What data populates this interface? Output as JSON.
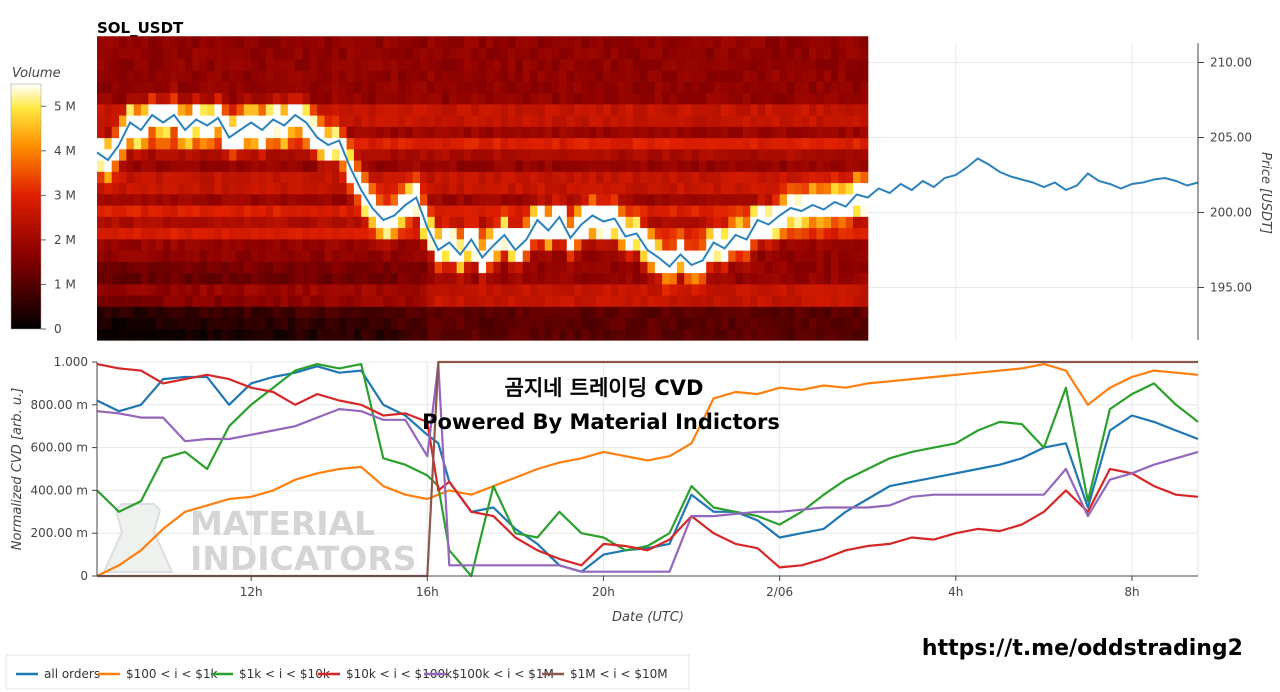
{
  "header": {
    "title": "SOL_USDT"
  },
  "colorbar": {
    "label": "Volume",
    "ticks": [
      "5 M",
      "4 M",
      "3 M",
      "2 M",
      "1 M",
      "0"
    ],
    "tick_values": [
      5,
      4,
      3,
      2,
      1,
      0
    ]
  },
  "overlay": {
    "line1": "곰지네 트레이딩 CVD",
    "line2": "Powered By Material Indictors"
  },
  "watermark": {
    "line1": "MATERIAL",
    "line2": "INDICATORS"
  },
  "footer": {
    "link": "https://t.me/oddstrading2"
  },
  "chart_data": [
    {
      "type": "heatmap",
      "name": "price-volume-heatmap",
      "title": "SOL_USDT",
      "xlabel": "",
      "ylabel": "Price [USDT]",
      "ylim": [
        191.5,
        211.3
      ],
      "y_ticks": [
        "210.00",
        "205.00",
        "200.00",
        "195.00"
      ],
      "y_tick_values": [
        210,
        205,
        200,
        195
      ],
      "color_scale": "black-red-yellow-white",
      "color_label": "Volume",
      "volume_range": [
        0,
        5.5
      ],
      "price_series": {
        "x": [
          8.5,
          8.75,
          9.0,
          9.25,
          9.5,
          9.75,
          10.0,
          10.25,
          10.5,
          10.75,
          11.0,
          11.25,
          11.5,
          11.75,
          12.0,
          12.25,
          12.5,
          12.75,
          13.0,
          13.25,
          13.5,
          13.75,
          14.0,
          14.25,
          14.5,
          14.75,
          15.0,
          15.25,
          15.5,
          15.75,
          16.0,
          16.25,
          16.5,
          16.75,
          17.0,
          17.25,
          17.5,
          17.75,
          18.0,
          18.25,
          18.5,
          18.75,
          19.0,
          19.25,
          19.5,
          19.75,
          20.0,
          20.25,
          20.5,
          20.75,
          21.0,
          21.25,
          21.5,
          21.75,
          22.0,
          22.25,
          22.5,
          22.75,
          23.0,
          23.25,
          23.5,
          23.75,
          24.0,
          24.25,
          24.5,
          24.75,
          25.0,
          25.25,
          25.5,
          25.75,
          26.0,
          26.25,
          26.5,
          26.75,
          27.0,
          27.25,
          27.5,
          27.75,
          28.0,
          28.25,
          28.5,
          28.75,
          29.0,
          29.25,
          29.5,
          29.75,
          30.0,
          30.25,
          30.5,
          30.75,
          31.0,
          31.25,
          31.5,
          31.75,
          32.0,
          32.25,
          32.5,
          32.75,
          33.0,
          33.25,
          33.5
        ],
        "y": [
          204.0,
          203.5,
          204.5,
          206.0,
          205.5,
          206.5,
          206.0,
          206.5,
          205.5,
          206.2,
          205.8,
          206.3,
          205.0,
          205.5,
          206.0,
          205.5,
          206.2,
          205.8,
          206.5,
          206.0,
          205.0,
          204.5,
          204.8,
          203.0,
          201.5,
          200.3,
          199.5,
          199.8,
          200.5,
          201.0,
          199.0,
          197.5,
          198.0,
          197.2,
          198.2,
          197.0,
          197.8,
          198.5,
          197.5,
          198.2,
          199.5,
          198.8,
          199.7,
          198.3,
          199.2,
          199.8,
          199.4,
          199.6,
          198.4,
          198.6,
          197.5,
          197.0,
          196.4,
          197.2,
          196.5,
          196.8,
          198.0,
          197.6,
          198.5,
          198.2,
          199.5,
          199.2,
          199.8,
          200.3,
          200.1,
          200.5,
          200.2,
          200.7,
          200.4,
          201.2,
          201.0,
          201.6,
          201.3,
          201.9,
          201.5,
          202.1,
          201.7,
          202.3,
          202.5,
          203.0,
          203.6,
          203.2,
          202.7,
          202.4,
          202.2,
          202.0,
          201.7,
          202.0,
          201.5,
          201.8,
          202.6,
          202.1,
          201.9,
          201.6,
          201.9,
          202.0,
          202.2,
          202.3,
          202.1,
          201.8,
          202.0
        ],
        "color": "#2b83ba"
      }
    },
    {
      "type": "line",
      "name": "normalized-cvd",
      "xlabel": "Date (UTC)",
      "ylabel": "Normalized CVD [arb. u.]",
      "xlim": [
        8.5,
        33.5
      ],
      "ylim": [
        0,
        1
      ],
      "x_ticks": [
        "12h",
        "16h",
        "20h",
        "2/06",
        "4h",
        "8h"
      ],
      "x_tick_values": [
        12,
        16,
        20,
        24,
        28,
        32
      ],
      "y_ticks": [
        "1.000",
        "800.00 m",
        "600.00 m",
        "400.00 m",
        "200.00 m",
        "0"
      ],
      "y_tick_values": [
        1,
        0.8,
        0.6,
        0.4,
        0.2,
        0
      ],
      "x": [
        8.5,
        9.0,
        9.5,
        10.0,
        10.5,
        11.0,
        11.5,
        12.0,
        12.5,
        13.0,
        13.5,
        14.0,
        14.5,
        15.0,
        15.5,
        16.0,
        16.25,
        16.5,
        17.0,
        17.5,
        18.0,
        18.5,
        19.0,
        19.5,
        20.0,
        20.5,
        21.0,
        21.5,
        22.0,
        22.5,
        23.0,
        23.5,
        24.0,
        24.5,
        25.0,
        25.5,
        26.0,
        26.5,
        27.0,
        27.5,
        28.0,
        28.5,
        29.0,
        29.5,
        30.0,
        30.5,
        31.0,
        31.5,
        32.0,
        32.5,
        33.0,
        33.5
      ],
      "series": [
        {
          "name": "all orders",
          "color": "#1f77b4",
          "values": [
            0.82,
            0.77,
            0.8,
            0.92,
            0.93,
            0.93,
            0.8,
            0.9,
            0.93,
            0.95,
            0.98,
            0.95,
            0.96,
            0.8,
            0.75,
            0.66,
            0.62,
            0.44,
            0.3,
            0.32,
            0.22,
            0.15,
            0.05,
            0.02,
            0.1,
            0.12,
            0.13,
            0.15,
            0.38,
            0.3,
            0.3,
            0.26,
            0.18,
            0.2,
            0.22,
            0.3,
            0.36,
            0.42,
            0.44,
            0.46,
            0.48,
            0.5,
            0.52,
            0.55,
            0.6,
            0.62,
            0.32,
            0.68,
            0.75,
            0.72,
            0.68,
            0.64
          ]
        },
        {
          "name": "$100 < i < $1k",
          "color": "#ff7f0e",
          "values": [
            0.0,
            0.05,
            0.12,
            0.22,
            0.3,
            0.33,
            0.36,
            0.37,
            0.4,
            0.45,
            0.48,
            0.5,
            0.51,
            0.42,
            0.38,
            0.36,
            0.38,
            0.4,
            0.38,
            0.42,
            0.46,
            0.5,
            0.53,
            0.55,
            0.58,
            0.56,
            0.54,
            0.56,
            0.62,
            0.83,
            0.86,
            0.85,
            0.88,
            0.87,
            0.89,
            0.88,
            0.9,
            0.91,
            0.92,
            0.93,
            0.94,
            0.95,
            0.96,
            0.97,
            0.99,
            0.96,
            0.8,
            0.88,
            0.93,
            0.96,
            0.95,
            0.94
          ]
        },
        {
          "name": "$1k < i < $10k",
          "color": "#2ca02c",
          "values": [
            0.4,
            0.3,
            0.35,
            0.55,
            0.58,
            0.5,
            0.7,
            0.8,
            0.88,
            0.96,
            0.99,
            0.97,
            0.99,
            0.55,
            0.52,
            0.47,
            0.42,
            0.12,
            0.0,
            0.42,
            0.2,
            0.18,
            0.3,
            0.2,
            0.18,
            0.12,
            0.14,
            0.2,
            0.42,
            0.32,
            0.3,
            0.28,
            0.24,
            0.3,
            0.38,
            0.45,
            0.5,
            0.55,
            0.58,
            0.6,
            0.62,
            0.68,
            0.72,
            0.71,
            0.6,
            0.88,
            0.35,
            0.78,
            0.85,
            0.9,
            0.8,
            0.72
          ]
        },
        {
          "name": "$10k < i < $100k",
          "color": "#d62728",
          "values": [
            0.99,
            0.97,
            0.96,
            0.9,
            0.92,
            0.94,
            0.92,
            0.88,
            0.86,
            0.8,
            0.85,
            0.82,
            0.8,
            0.75,
            0.76,
            0.72,
            0.4,
            0.44,
            0.3,
            0.28,
            0.18,
            0.12,
            0.08,
            0.05,
            0.15,
            0.14,
            0.12,
            0.17,
            0.28,
            0.2,
            0.15,
            0.13,
            0.04,
            0.05,
            0.08,
            0.12,
            0.14,
            0.15,
            0.18,
            0.17,
            0.2,
            0.22,
            0.21,
            0.24,
            0.3,
            0.4,
            0.3,
            0.5,
            0.48,
            0.42,
            0.38,
            0.37
          ]
        },
        {
          "name": "$100k < i < $1M",
          "color": "#9467bd",
          "values": [
            0.77,
            0.76,
            0.74,
            0.74,
            0.63,
            0.64,
            0.64,
            0.66,
            0.68,
            0.7,
            0.74,
            0.78,
            0.77,
            0.73,
            0.73,
            0.56,
            0.99,
            0.05,
            0.05,
            0.05,
            0.05,
            0.05,
            0.05,
            0.02,
            0.02,
            0.02,
            0.02,
            0.02,
            0.28,
            0.28,
            0.29,
            0.3,
            0.3,
            0.31,
            0.32,
            0.32,
            0.32,
            0.33,
            0.37,
            0.38,
            0.38,
            0.38,
            0.38,
            0.38,
            0.38,
            0.5,
            0.28,
            0.45,
            0.48,
            0.52,
            0.55,
            0.58
          ]
        },
        {
          "name": "$1M < i < $10M",
          "color": "#8c564b",
          "values": [
            0.0,
            0.0,
            0.0,
            0.0,
            0.0,
            0.0,
            0.0,
            0.0,
            0.0,
            0.0,
            0.0,
            0.0,
            0.0,
            0.0,
            0.0,
            0.0,
            1.0,
            1.0,
            1.0,
            1.0,
            1.0,
            1.0,
            1.0,
            1.0,
            1.0,
            1.0,
            1.0,
            1.0,
            1.0,
            1.0,
            1.0,
            1.0,
            1.0,
            1.0,
            1.0,
            1.0,
            1.0,
            1.0,
            1.0,
            1.0,
            1.0,
            1.0,
            1.0,
            1.0,
            1.0,
            1.0,
            1.0,
            1.0,
            1.0,
            1.0,
            1.0,
            1.0
          ]
        }
      ],
      "legend_position": "bottom"
    }
  ]
}
